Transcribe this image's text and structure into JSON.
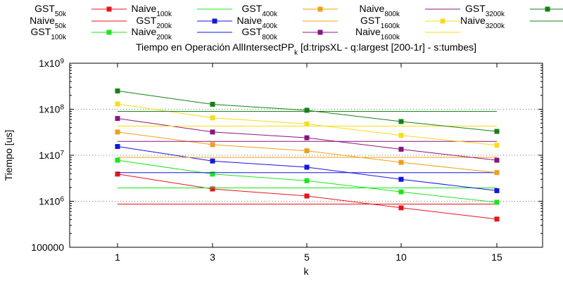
{
  "chart_data": {
    "type": "line",
    "title": "Tiempo en Operación AllIntersectPP",
    "title_sub": "k",
    "title_rest": " [d:tripsXL - q:largest [200-1r] - s:tumbes]",
    "xlabel": "k",
    "ylabel": "Tiempo [us]",
    "x": [
      "1",
      "3",
      "5",
      "10",
      "15"
    ],
    "y_scale": "log",
    "ylim": [
      100000,
      1000000000
    ],
    "yticks": [
      {
        "value": 100000,
        "label": "100000"
      },
      {
        "value": 1000000,
        "base": "1x10",
        "exp": "6"
      },
      {
        "value": 10000000,
        "base": "1x10",
        "exp": "7"
      },
      {
        "value": 100000000,
        "base": "1x10",
        "exp": "8"
      },
      {
        "value": 1000000000,
        "base": "1x10",
        "exp": "9"
      }
    ],
    "grid": "y-major-dotted",
    "legend_position": "top",
    "series": [
      {
        "name": "GST",
        "sub": "50k",
        "color": "#e8141c",
        "marker": true,
        "values": [
          3900000,
          1850000,
          1300000,
          720000,
          410000
        ]
      },
      {
        "name": "Naive",
        "sub": "50k",
        "color": "#e8141c",
        "marker": false,
        "values": [
          870000,
          870000,
          870000,
          870000,
          870000
        ]
      },
      {
        "name": "GST",
        "sub": "100k",
        "color": "#18e818",
        "marker": true,
        "values": [
          7800000,
          3900000,
          2800000,
          1600000,
          950000
        ]
      },
      {
        "name": "Naive",
        "sub": "100k",
        "color": "#18e818",
        "marker": false,
        "values": [
          1950000,
          1950000,
          1950000,
          1950000,
          1950000
        ]
      },
      {
        "name": "GST",
        "sub": "200k",
        "color": "#1414e8",
        "marker": true,
        "values": [
          15500000,
          7500000,
          5500000,
          3000000,
          1700000
        ]
      },
      {
        "name": "Naive",
        "sub": "200k",
        "color": "#1414e8",
        "marker": false,
        "values": [
          4200000,
          4200000,
          4200000,
          4200000,
          4200000
        ]
      },
      {
        "name": "GST",
        "sub": "400k",
        "color": "#f0a014",
        "marker": true,
        "values": [
          32000000,
          17000000,
          12500000,
          7000000,
          4200000
        ]
      },
      {
        "name": "Naive",
        "sub": "400k",
        "color": "#f0a014",
        "marker": false,
        "values": [
          9000000,
          9000000,
          9000000,
          9000000,
          9000000
        ]
      },
      {
        "name": "GST",
        "sub": "800k",
        "color": "#8c1480",
        "marker": true,
        "values": [
          63000000,
          32000000,
          24000000,
          13500000,
          7800000
        ]
      },
      {
        "name": "Naive",
        "sub": "800k",
        "color": "#8c1480",
        "marker": false,
        "values": [
          20000000,
          20000000,
          20000000,
          20000000,
          20000000
        ]
      },
      {
        "name": "GST",
        "sub": "1600k",
        "color": "#f8dc14",
        "marker": true,
        "values": [
          130000000,
          65000000,
          48000000,
          27000000,
          16500000
        ]
      },
      {
        "name": "Naive",
        "sub": "1600k",
        "color": "#f8dc14",
        "marker": false,
        "values": [
          43000000,
          43000000,
          43000000,
          43000000,
          43000000
        ]
      },
      {
        "name": "GST",
        "sub": "3200k",
        "color": "#148214",
        "marker": true,
        "values": [
          250000000,
          128000000,
          95000000,
          54000000,
          33000000
        ]
      },
      {
        "name": "Naive",
        "sub": "3200k",
        "color": "#148214",
        "marker": false,
        "values": [
          90000000,
          90000000,
          90000000,
          90000000,
          90000000
        ]
      }
    ]
  }
}
